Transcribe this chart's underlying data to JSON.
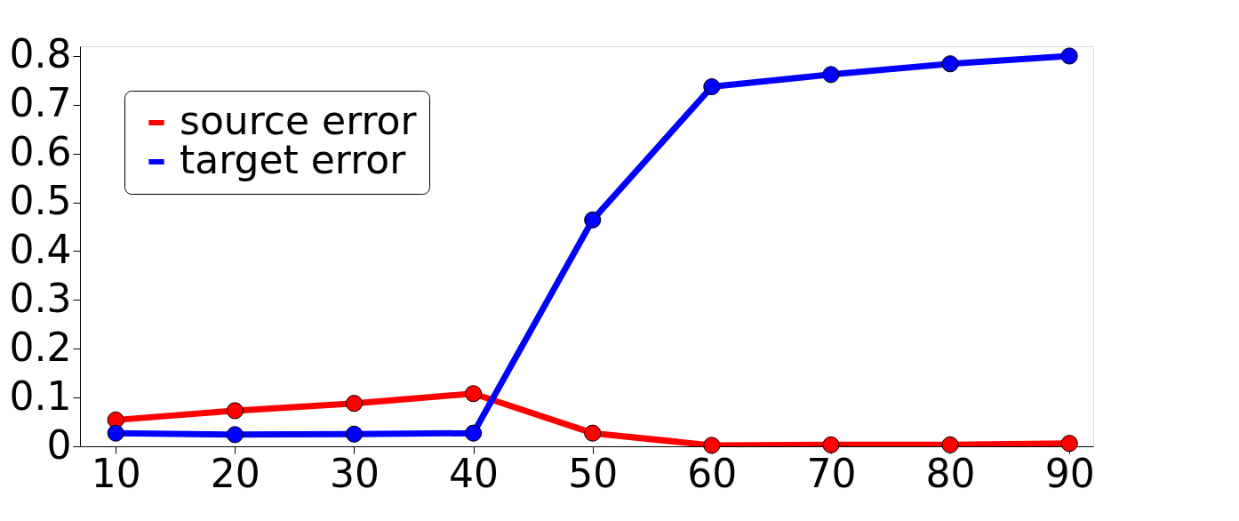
{
  "chart_data": {
    "type": "line",
    "x": [
      10,
      20,
      30,
      40,
      50,
      60,
      70,
      80,
      90
    ],
    "series": [
      {
        "name": "source error",
        "color": "#ff0000",
        "values": [
          0.054,
          0.073,
          0.088,
          0.108,
          0.027,
          0.002,
          0.003,
          0.003,
          0.006
        ]
      },
      {
        "name": "target error",
        "color": "#0000ff",
        "values": [
          0.027,
          0.024,
          0.025,
          0.027,
          0.464,
          0.737,
          0.762,
          0.784,
          0.8
        ]
      }
    ],
    "xlim": [
      7,
      92
    ],
    "xticks": [
      10,
      20,
      30,
      40,
      50,
      60,
      70,
      80,
      90
    ],
    "ylim": [
      0,
      0.82
    ],
    "yticks": [
      0,
      0.1,
      0.2,
      0.3,
      0.4,
      0.5,
      0.6,
      0.7,
      0.8
    ],
    "grid": false,
    "legend": "top left",
    "marker": "circle",
    "line_style": "solid"
  }
}
